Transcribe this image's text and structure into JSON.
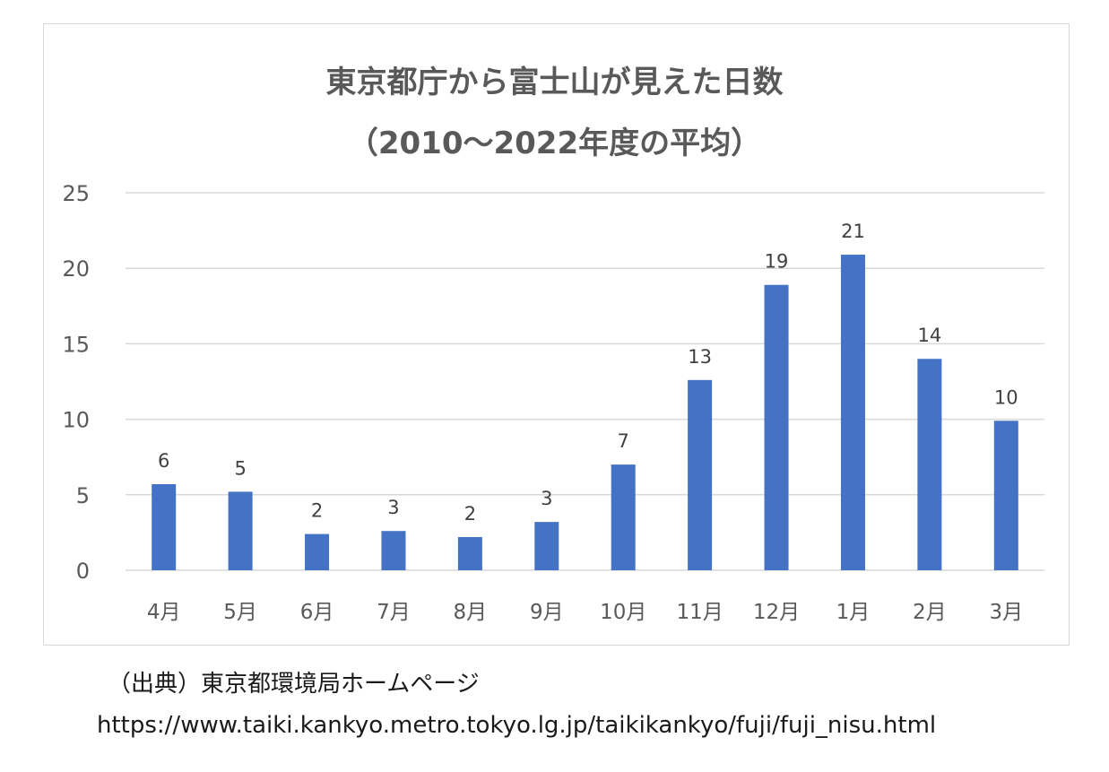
{
  "chart_data": {
    "type": "bar",
    "title": "東京都庁から富士山が見えた日数",
    "subtitle": "（2010〜2022年度の平均）",
    "categories": [
      "4月",
      "5月",
      "6月",
      "7月",
      "8月",
      "9月",
      "10月",
      "11月",
      "12月",
      "1月",
      "2月",
      "3月"
    ],
    "values": [
      5.7,
      5.2,
      2.4,
      2.6,
      2.2,
      3.2,
      7.0,
      12.6,
      18.9,
      20.9,
      14.0,
      9.9
    ],
    "data_labels": [
      "6",
      "5",
      "2",
      "3",
      "2",
      "3",
      "7",
      "13",
      "19",
      "21",
      "14",
      "10"
    ],
    "ylim": [
      0,
      25
    ],
    "yticks": [
      0,
      5,
      10,
      15,
      20,
      25
    ],
    "xlabel": "",
    "ylabel": "",
    "grid": true,
    "bar_color": "#4472c4",
    "grid_color": "#d9d9d9"
  },
  "footer": {
    "source": "（出典）東京都環境局ホームページ",
    "url": "https://www.taiki.kankyo.metro.tokyo.lg.jp/taikikankyo/fuji/fuji_nisu.html"
  }
}
